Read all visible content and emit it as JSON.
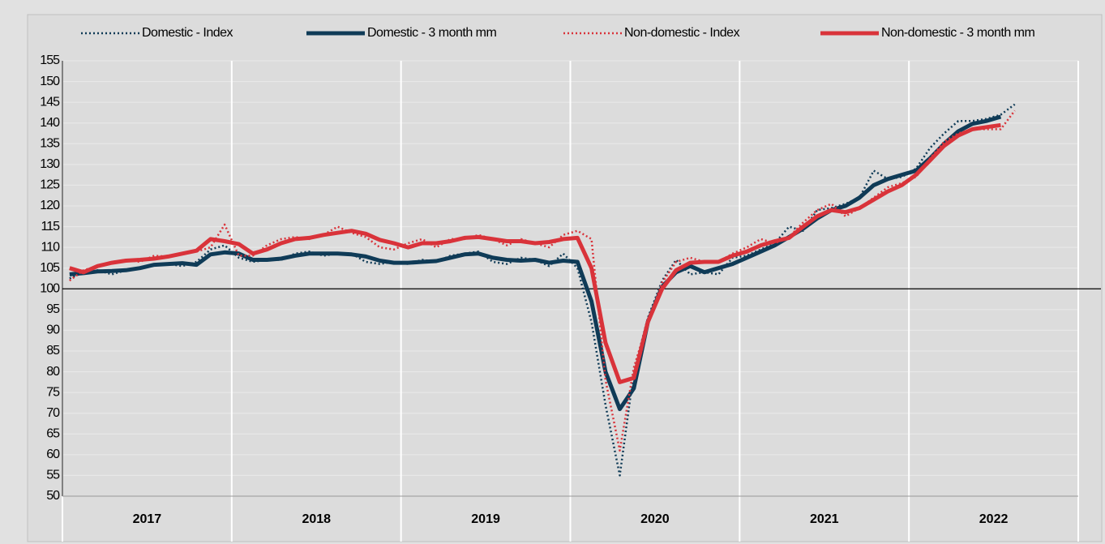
{
  "chart_data": {
    "type": "line",
    "x": [
      2017.042,
      2017.125,
      2017.208,
      2017.292,
      2017.375,
      2017.458,
      2017.542,
      2017.625,
      2017.708,
      2017.792,
      2017.875,
      2017.958,
      2018.042,
      2018.125,
      2018.208,
      2018.292,
      2018.375,
      2018.458,
      2018.542,
      2018.625,
      2018.708,
      2018.792,
      2018.875,
      2018.958,
      2019.042,
      2019.125,
      2019.208,
      2019.292,
      2019.375,
      2019.458,
      2019.542,
      2019.625,
      2019.708,
      2019.792,
      2019.875,
      2019.958,
      2020.042,
      2020.125,
      2020.208,
      2020.292,
      2020.375,
      2020.458,
      2020.542,
      2020.625,
      2020.708,
      2020.792,
      2020.875,
      2020.958,
      2021.042,
      2021.125,
      2021.208,
      2021.292,
      2021.375,
      2021.458,
      2021.542,
      2021.625,
      2021.708,
      2021.792,
      2021.875,
      2021.958,
      2022.042,
      2022.125,
      2022.208,
      2022.292,
      2022.375,
      2022.458,
      2022.542,
      2022.625
    ],
    "series": [
      {
        "name": "Domestic - Index",
        "color": "#0f3b57",
        "style": "dotted",
        "values": [
          102.5,
          104,
          104.5,
          103.5,
          104.5,
          104.8,
          106,
          106,
          105.5,
          106.5,
          109.5,
          110.5,
          107.5,
          106.5,
          107,
          107,
          108.5,
          109,
          108,
          108.5,
          108.5,
          106.5,
          106,
          106.5,
          106,
          107,
          106.5,
          108,
          108.5,
          109,
          106.5,
          106,
          107.5,
          107,
          105.5,
          108.5,
          105,
          92,
          72,
          55,
          80,
          93,
          102,
          107,
          103.5,
          104,
          103.5,
          107.5,
          108,
          109.5,
          111,
          115,
          114,
          119,
          119.5,
          120.5,
          122,
          128.5,
          126.5,
          127,
          129,
          134,
          137.5,
          140.5,
          140.5,
          141,
          142,
          144.5
        ]
      },
      {
        "name": "Domestic - 3 month mm",
        "color": "#0f3b57",
        "style": "solid",
        "values": [
          103.5,
          103.8,
          104.2,
          104.3,
          104.5,
          105,
          105.8,
          106,
          106.2,
          105.8,
          108.3,
          108.8,
          108.5,
          107,
          107,
          107.3,
          108,
          108.5,
          108.5,
          108.5,
          108.3,
          107.8,
          106.8,
          106.3,
          106.3,
          106.5,
          106.7,
          107.5,
          108.3,
          108.5,
          107.5,
          107,
          106.8,
          107,
          106.3,
          106.8,
          106.5,
          97,
          80,
          71,
          76,
          92,
          100.5,
          104,
          105.5,
          104,
          105,
          106,
          107.5,
          109,
          110.5,
          112.5,
          114.5,
          117,
          119,
          120,
          122,
          125,
          126.5,
          127.5,
          128.5,
          131.5,
          135,
          138,
          139.8,
          140.5,
          141.5,
          null
        ]
      },
      {
        "name": "Non-domestic - Index",
        "color": "#d9333a",
        "style": "dotted",
        "values": [
          102,
          104.5,
          105.5,
          106.5,
          107,
          106.5,
          108,
          107.8,
          108.5,
          109,
          110,
          115.5,
          108,
          108,
          110.5,
          112,
          112.5,
          112,
          113,
          115,
          113.5,
          112.5,
          110,
          109.5,
          111,
          112,
          110,
          112,
          112,
          113,
          112,
          110.5,
          112,
          111,
          110,
          113,
          114,
          112,
          78,
          61,
          81,
          92,
          101.5,
          106.5,
          107.5,
          106.5,
          106.5,
          108.5,
          110,
          112,
          111,
          112.5,
          116,
          119,
          120.5,
          117.5,
          119.5,
          122,
          124.5,
          125.5,
          127,
          131.5,
          135.5,
          137.5,
          138.5,
          138.5,
          138.5,
          143
        ]
      },
      {
        "name": "Non-domestic - 3 month mm",
        "color": "#d9333a",
        "style": "solid",
        "values": [
          105,
          104,
          105.5,
          106.3,
          106.8,
          107,
          107.3,
          107.8,
          108.5,
          109.2,
          112,
          111.5,
          110.8,
          108.5,
          109.5,
          111,
          112,
          112.3,
          113,
          113.5,
          114,
          113.3,
          111.8,
          111,
          110,
          111,
          111,
          111.5,
          112.3,
          112.5,
          112,
          111.5,
          111.5,
          111,
          111.3,
          112,
          112.3,
          105,
          87,
          77.5,
          78.5,
          92,
          100,
          104.5,
          106.3,
          106.5,
          106.5,
          108,
          109,
          110.5,
          111.5,
          112.3,
          115,
          117.5,
          119,
          118.5,
          119.5,
          121.5,
          123.5,
          125,
          127.5,
          131,
          134.5,
          137,
          138.5,
          139,
          139.5,
          null
        ]
      }
    ],
    "xlim": [
      2017,
      2023
    ],
    "xticks": [
      {
        "value": 2017.5,
        "label": "2017"
      },
      {
        "value": 2018.5,
        "label": "2018"
      },
      {
        "value": 2019.5,
        "label": "2019"
      },
      {
        "value": 2020.5,
        "label": "2020"
      },
      {
        "value": 2021.5,
        "label": "2021"
      },
      {
        "value": 2022.5,
        "label": "2022"
      }
    ],
    "xgrid": [
      2017,
      2018,
      2019,
      2020,
      2021,
      2022,
      2023
    ],
    "ylim": [
      50,
      155
    ],
    "yticks": [
      50,
      55,
      60,
      65,
      70,
      75,
      80,
      85,
      90,
      95,
      100,
      105,
      110,
      115,
      120,
      125,
      130,
      135,
      140,
      145,
      150,
      155
    ],
    "reference_line": 100,
    "grid": true,
    "legend": "top"
  }
}
